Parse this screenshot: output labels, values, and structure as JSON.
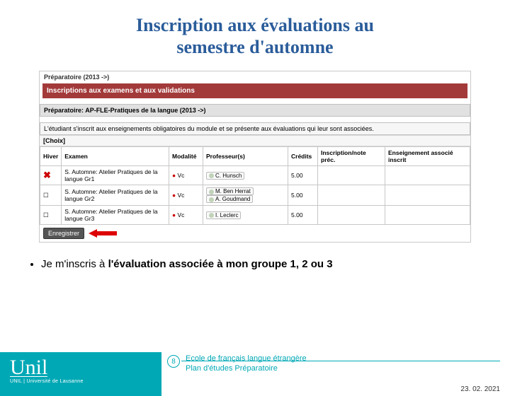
{
  "title_line1": "Inscription aux évaluations au",
  "title_line2": "semestre d'automne",
  "prep": "Préparatoire (2013 ->)",
  "tab_label": "Inscriptions aux examens et aux validations",
  "module_header": "Préparatoire: AP-FLE-Pratiques de la langue (2013 ->)",
  "module_sub": "L'étudiant s'inscrit aux enseignements obligatoires du module et se présente aux évaluations qui leur sont associées.",
  "choix": "[Choix]",
  "headers": {
    "h1": "Hiver",
    "h2": "Examen",
    "h3": "Modalité",
    "h4": "Professeur(s)",
    "h5": "Crédits",
    "h6": "Inscription/note préc.",
    "h7": "Enseignement associé inscrit"
  },
  "rows": [
    {
      "chk": "✖",
      "exam": "S. Automne: Atelier Pratiques de la langue Gr1",
      "mod": "Vc",
      "profs": [
        "C. Hunsch"
      ],
      "credits": "5.00"
    },
    {
      "chk": "☐",
      "exam": "S. Automne: Atelier Pratiques de la langue Gr2",
      "mod": "Vc",
      "profs": [
        "M. Ben Herrat",
        "A. Goudmand"
      ],
      "credits": "5.00"
    },
    {
      "chk": "☐",
      "exam": "S. Automne: Atelier Pratiques de la langue Gr3",
      "mod": "Vc",
      "profs": [
        "I. Leclerc"
      ],
      "credits": "5.00"
    }
  ],
  "save": "Enregistrer",
  "bullet_prefix": "Je m'inscris à ",
  "bullet_bold": "l'évaluation associée à mon groupe 1, 2 ou 3",
  "logo": "Unil",
  "logo_sub": "UNIL | Université de Lausanne",
  "page_num": "8",
  "footer_l1": "Ecole de français langue étrangère",
  "footer_l2": "Plan d'études Préparatoire",
  "date": "23. 02. 2021"
}
